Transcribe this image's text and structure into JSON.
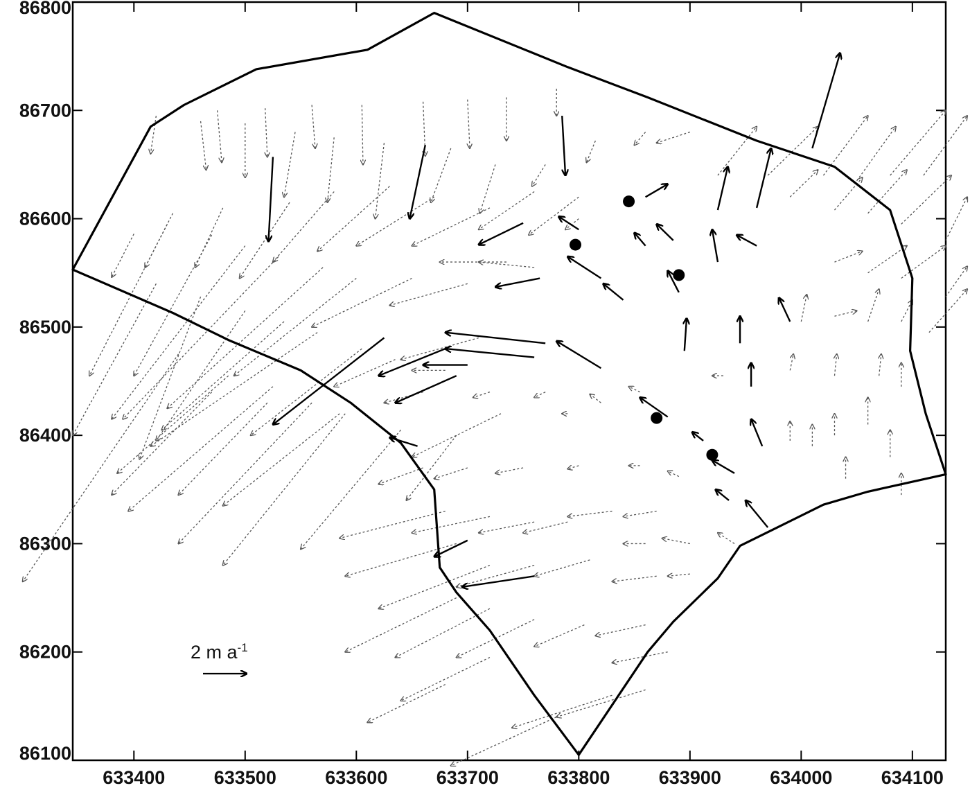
{
  "chart_data": {
    "type": "quiver",
    "x_ticks": [
      633400,
      633500,
      633600,
      633700,
      633800,
      633900,
      634000,
      634100
    ],
    "y_ticks": [
      86100,
      86200,
      86300,
      86400,
      86500,
      86600,
      86700,
      86800
    ],
    "xlim": [
      633345,
      634130
    ],
    "ylim": [
      86100,
      86800
    ],
    "grid": false,
    "scale_reference": {
      "label": "2 m a",
      "superscript": "-1",
      "value": 2,
      "unit": "m a-1"
    },
    "colors": {
      "outline": "#000000",
      "measured": "#000000",
      "modeled": "#555555"
    },
    "outline": [
      [
        633345,
        86553
      ],
      [
        633415,
        86685
      ],
      [
        633445,
        86705
      ],
      [
        633510,
        86738
      ],
      [
        633610,
        86756
      ],
      [
        633670,
        86790
      ],
      [
        633790,
        86740
      ],
      [
        633862,
        86712
      ],
      [
        633960,
        86672
      ],
      [
        634030,
        86648
      ],
      [
        634080,
        86608
      ],
      [
        634100,
        86545
      ],
      [
        634098,
        86478
      ],
      [
        634112,
        86420
      ],
      [
        634130,
        86364
      ],
      [
        634060,
        86348
      ],
      [
        634020,
        86336
      ],
      [
        633945,
        86298
      ],
      [
        633925,
        86268
      ],
      [
        633885,
        86228
      ],
      [
        633862,
        86200
      ],
      [
        633800,
        86105
      ],
      [
        633760,
        86160
      ],
      [
        633720,
        86220
      ],
      [
        633690,
        86255
      ],
      [
        633675,
        86278
      ],
      [
        633670,
        86350
      ],
      [
        633640,
        86393
      ],
      [
        633595,
        86430
      ],
      [
        633550,
        86460
      ],
      [
        633485,
        86488
      ],
      [
        633435,
        86513
      ],
      [
        633345,
        86553
      ]
    ],
    "stakes": [
      [
        633845,
        86616
      ],
      [
        633797,
        86576
      ],
      [
        633890,
        86548
      ],
      [
        633870,
        86416
      ],
      [
        633920,
        86382
      ]
    ],
    "measured_vectors": [
      [
        633525,
        86657,
        -4,
        -78
      ],
      [
        633662,
        86668,
        -14,
        -68
      ],
      [
        633785,
        86695,
        3,
        -55
      ],
      [
        633860,
        86620,
        20,
        12
      ],
      [
        633925,
        86608,
        9,
        40
      ],
      [
        633960,
        86610,
        13,
        55
      ],
      [
        634010,
        86665,
        25,
        88
      ],
      [
        633750,
        86596,
        -40,
        -20
      ],
      [
        633765,
        86545,
        -40,
        -8
      ],
      [
        633820,
        86545,
        -30,
        20
      ],
      [
        633800,
        86590,
        -18,
        12
      ],
      [
        633840,
        86525,
        -18,
        15
      ],
      [
        633960,
        86575,
        -18,
        10
      ],
      [
        633925,
        86560,
        -5,
        30
      ],
      [
        633890,
        86532,
        -10,
        20
      ],
      [
        633885,
        86580,
        -15,
        15
      ],
      [
        633860,
        86575,
        -10,
        12
      ],
      [
        633895,
        86478,
        2,
        30
      ],
      [
        633945,
        86485,
        0,
        25
      ],
      [
        633990,
        86505,
        -10,
        22
      ],
      [
        633955,
        86445,
        0,
        22
      ],
      [
        633625,
        86490,
        -100,
        -80
      ],
      [
        633680,
        86480,
        -60,
        -25
      ],
      [
        633690,
        86455,
        -55,
        -25
      ],
      [
        633770,
        86485,
        -90,
        10
      ],
      [
        633760,
        86472,
        -80,
        8
      ],
      [
        633700,
        86465,
        -40,
        0
      ],
      [
        633820,
        86462,
        -40,
        25
      ],
      [
        633880,
        86417,
        -25,
        18
      ],
      [
        633912,
        86395,
        -10,
        8
      ],
      [
        633940,
        86365,
        -20,
        12
      ],
      [
        633965,
        86390,
        -10,
        25
      ],
      [
        633970,
        86315,
        -20,
        25
      ],
      [
        633935,
        86340,
        -12,
        10
      ],
      [
        633700,
        86303,
        -30,
        -15
      ],
      [
        633760,
        86270,
        -65,
        -10
      ],
      [
        633655,
        86390,
        -25,
        8
      ]
    ],
    "modeled_vectors": [
      [
        633420,
        86695,
        -5,
        -35
      ],
      [
        633475,
        86700,
        4,
        -48
      ],
      [
        633518,
        86702,
        2,
        -45
      ],
      [
        633560,
        86705,
        3,
        -40
      ],
      [
        633605,
        86705,
        1,
        -55
      ],
      [
        633660,
        86708,
        2,
        -50
      ],
      [
        633700,
        86710,
        2,
        -45
      ],
      [
        633735,
        86712,
        0,
        -40
      ],
      [
        633780,
        86720,
        0,
        -25
      ],
      [
        633460,
        86690,
        5,
        -45
      ],
      [
        633500,
        86688,
        0,
        -50
      ],
      [
        633545,
        86680,
        -10,
        -60
      ],
      [
        633580,
        86675,
        -6,
        -60
      ],
      [
        633625,
        86670,
        -8,
        -70
      ],
      [
        633685,
        86665,
        -18,
        -50
      ],
      [
        633725,
        86650,
        -14,
        -45
      ],
      [
        633770,
        86650,
        -12,
        -20
      ],
      [
        633815,
        86672,
        -8,
        -20
      ],
      [
        633860,
        86680,
        -10,
        -12
      ],
      [
        633900,
        86680,
        -30,
        -10
      ],
      [
        633400,
        86586,
        -20,
        -40
      ],
      [
        633435,
        86605,
        -25,
        -50
      ],
      [
        633480,
        86610,
        -25,
        -55
      ],
      [
        633540,
        86615,
        -45,
        -70
      ],
      [
        633580,
        86625,
        -55,
        -65
      ],
      [
        633630,
        86630,
        -65,
        -60
      ],
      [
        633670,
        86620,
        -70,
        -45
      ],
      [
        633720,
        86610,
        -70,
        -35
      ],
      [
        633760,
        86625,
        -50,
        -35
      ],
      [
        633800,
        86620,
        -45,
        -35
      ],
      [
        633430,
        86595,
        -70,
        -140
      ],
      [
        633470,
        86585,
        -70,
        -130
      ],
      [
        633500,
        86575,
        -120,
        -160
      ],
      [
        633530,
        86565,
        -140,
        -150
      ],
      [
        633570,
        86555,
        -140,
        -130
      ],
      [
        633600,
        86545,
        -110,
        -90
      ],
      [
        633650,
        86545,
        -90,
        -45
      ],
      [
        633700,
        86540,
        -70,
        -20
      ],
      [
        633735,
        86560,
        -60,
        0
      ],
      [
        633760,
        86555,
        -50,
        5
      ],
      [
        633800,
        86600,
        -12,
        -10
      ],
      [
        633420,
        86540,
        -75,
        -140
      ],
      [
        633460,
        86528,
        -55,
        -150
      ],
      [
        633500,
        86515,
        -80,
        -120
      ],
      [
        633535,
        86505,
        -110,
        -100
      ],
      [
        633565,
        86495,
        -150,
        -105
      ],
      [
        633605,
        86480,
        -100,
        -80
      ],
      [
        633635,
        86470,
        -55,
        -25
      ],
      [
        633680,
        86460,
        -30,
        0
      ],
      [
        633710,
        86490,
        -70,
        -20
      ],
      [
        633440,
        86475,
        -140,
        -210
      ],
      [
        633485,
        86455,
        -100,
        -90
      ],
      [
        633525,
        86445,
        -130,
        -115
      ],
      [
        633560,
        86430,
        -120,
        -130
      ],
      [
        633590,
        86420,
        -110,
        -140
      ],
      [
        633640,
        86405,
        -90,
        -110
      ],
      [
        633690,
        86400,
        -45,
        -60
      ],
      [
        633730,
        86420,
        -80,
        -40
      ],
      [
        633470,
        86440,
        -90,
        -95
      ],
      [
        633520,
        86430,
        -80,
        -85
      ],
      [
        633585,
        86420,
        -105,
        -85
      ],
      [
        633660,
        86440,
        -35,
        -10
      ],
      [
        633720,
        86440,
        -15,
        -5
      ],
      [
        633770,
        86440,
        -10,
        -5
      ],
      [
        633790,
        86420,
        -5,
        0
      ],
      [
        633820,
        86430,
        -10,
        8
      ],
      [
        633855,
        86440,
        -10,
        5
      ],
      [
        633930,
        86455,
        -10,
        0
      ],
      [
        633990,
        86460,
        3,
        15
      ],
      [
        634030,
        86455,
        2,
        20
      ],
      [
        634070,
        86455,
        2,
        20
      ],
      [
        634090,
        86445,
        0,
        22
      ],
      [
        633925,
        86640,
        35,
        45
      ],
      [
        633970,
        86640,
        45,
        45
      ],
      [
        634020,
        86640,
        40,
        55
      ],
      [
        634050,
        86635,
        35,
        50
      ],
      [
        634080,
        86640,
        50,
        60
      ],
      [
        634110,
        86640,
        45,
        55
      ],
      [
        633990,
        86620,
        25,
        25
      ],
      [
        634030,
        86608,
        25,
        30
      ],
      [
        634060,
        86605,
        35,
        40
      ],
      [
        634090,
        86595,
        45,
        45
      ],
      [
        634130,
        86580,
        60,
        40
      ],
      [
        634030,
        86560,
        25,
        10
      ],
      [
        634060,
        86550,
        35,
        25
      ],
      [
        634090,
        86545,
        40,
        30
      ],
      [
        634130,
        86528,
        55,
        28
      ],
      [
        634115,
        86495,
        55,
        40
      ],
      [
        634030,
        86510,
        20,
        5
      ],
      [
        634060,
        86505,
        10,
        30
      ],
      [
        634090,
        86505,
        10,
        20
      ],
      [
        634000,
        86505,
        5,
        25
      ],
      [
        634060,
        86410,
        0,
        25
      ],
      [
        634030,
        86400,
        0,
        20
      ],
      [
        634010,
        86390,
        0,
        20
      ],
      [
        634080,
        86380,
        0,
        25
      ],
      [
        633990,
        86395,
        0,
        18
      ],
      [
        634040,
        86360,
        0,
        20
      ],
      [
        634090,
        86345,
        0,
        20
      ],
      [
        633660,
        86370,
        -40,
        -15
      ],
      [
        633700,
        86370,
        -30,
        -10
      ],
      [
        633750,
        86370,
        -25,
        -5
      ],
      [
        633800,
        86372,
        -10,
        -3
      ],
      [
        633855,
        86372,
        -10,
        0
      ],
      [
        633890,
        86362,
        -10,
        5
      ],
      [
        633940,
        86300,
        -15,
        10
      ],
      [
        633900,
        86300,
        -25,
        5
      ],
      [
        633860,
        86300,
        -20,
        0
      ],
      [
        633790,
        86320,
        -40,
        -10
      ],
      [
        633760,
        86320,
        -50,
        -10
      ],
      [
        633720,
        86325,
        -70,
        -15
      ],
      [
        633680,
        86330,
        -95,
        -25
      ],
      [
        633830,
        86330,
        -40,
        -5
      ],
      [
        633870,
        86330,
        -30,
        -5
      ],
      [
        633690,
        86300,
        -100,
        -30
      ],
      [
        633720,
        86280,
        -100,
        -40
      ],
      [
        633760,
        86280,
        -70,
        -20
      ],
      [
        633810,
        86285,
        -50,
        -15
      ],
      [
        633870,
        86270,
        -40,
        -5
      ],
      [
        633900,
        86272,
        -20,
        -2
      ],
      [
        633690,
        86250,
        -100,
        -50
      ],
      [
        633720,
        86240,
        -85,
        -45
      ],
      [
        633760,
        86230,
        -70,
        -35
      ],
      [
        633805,
        86225,
        -45,
        -20
      ],
      [
        633860,
        86225,
        -45,
        -10
      ],
      [
        633880,
        86200,
        -50,
        -10
      ],
      [
        633860,
        86165,
        -80,
        -25
      ],
      [
        633830,
        86160,
        -90,
        -30
      ],
      [
        633780,
        86140,
        -95,
        -45
      ],
      [
        633720,
        86195,
        -80,
        -40
      ],
      [
        633680,
        86170,
        -70,
        -35
      ]
    ]
  }
}
